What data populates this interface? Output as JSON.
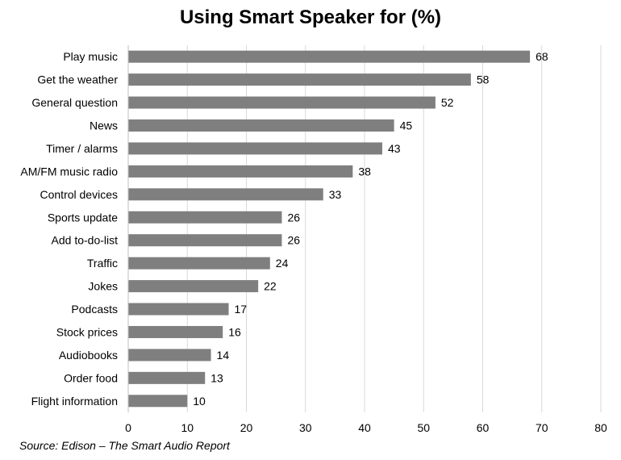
{
  "chart_data": {
    "type": "bar",
    "orientation": "horizontal",
    "title": "Using Smart Speaker for (%)",
    "source": "Source: Edison – The Smart Audio Report",
    "categories": [
      "Play music",
      "Get the weather",
      "General question",
      "News",
      "Timer / alarms",
      "AM/FM music radio",
      "Control devices",
      "Sports update",
      "Add to-do-list",
      "Traffic",
      "Jokes",
      "Podcasts",
      "Stock prices",
      "Audiobooks",
      "Order food",
      "Flight information"
    ],
    "values": [
      68,
      58,
      52,
      45,
      43,
      38,
      33,
      26,
      26,
      24,
      22,
      17,
      16,
      14,
      13,
      10
    ],
    "xlim": [
      0,
      80
    ],
    "xticks": [
      0,
      10,
      20,
      30,
      40,
      50,
      60,
      70,
      80
    ],
    "grid": "vertical",
    "legend": "none",
    "bar_color": "#7f7f7f",
    "grid_color": "#d9d9d9"
  }
}
